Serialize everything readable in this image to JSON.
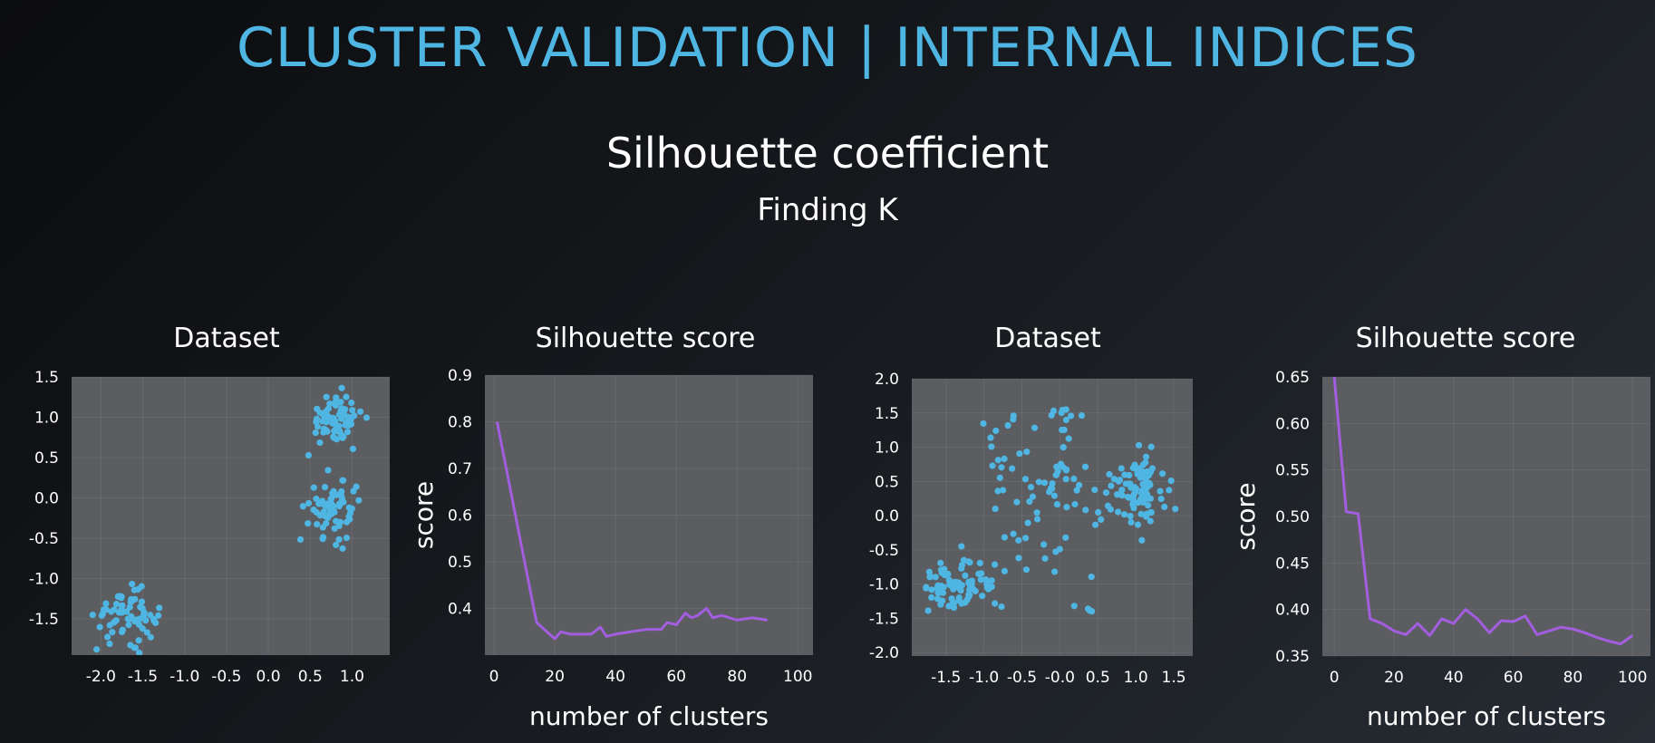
{
  "slide": {
    "title": "CLUSTER VALIDATION | INTERNAL INDICES",
    "subtitle": "Silhouette coefficient",
    "subsubtitle": "Finding K"
  },
  "colors": {
    "title": "#4fb6e3",
    "point": "#4fb6e3",
    "line": "#a35ee0",
    "plot_bg": "#5b5d61"
  },
  "chart_data": [
    {
      "type": "scatter",
      "title": "Dataset",
      "xlabel": "",
      "ylabel": "",
      "xlim": [
        -2.35,
        1.45
      ],
      "ylim": [
        -1.95,
        1.5
      ],
      "xticks": [
        -2.0,
        -1.5,
        -1.0,
        -0.5,
        0.0,
        0.5,
        1.0
      ],
      "xtick_labels": [
        "-2.0",
        "-1.5",
        "-1.0",
        "-0.5",
        "0.0",
        "0.5",
        "1.0"
      ],
      "yticks": [
        -1.5,
        -1.0,
        -0.5,
        0.0,
        0.5,
        1.0,
        1.5
      ],
      "ytick_labels": [
        "-1.5",
        "-1.0",
        "-0.5",
        "0.0",
        "0.5",
        "1.0",
        "1.5"
      ],
      "grid": true,
      "clusters": [
        {
          "center": [
            0.8,
            0.97
          ],
          "spread": [
            0.16,
            0.16
          ],
          "count": 70
        },
        {
          "center": [
            0.8,
            -0.15
          ],
          "spread": [
            0.16,
            0.18
          ],
          "count": 70
        },
        {
          "center": [
            -1.7,
            -1.45
          ],
          "spread": [
            0.18,
            0.15
          ],
          "count": 70
        }
      ]
    },
    {
      "type": "line",
      "title": "Silhouette score",
      "xlabel": "number of clusters",
      "ylabel": "score",
      "xlim": [
        -3,
        105
      ],
      "ylim": [
        0.3,
        0.9
      ],
      "xticks": [
        0,
        20,
        40,
        60,
        80,
        100
      ],
      "xtick_labels": [
        "0",
        "20",
        "40",
        "60",
        "80",
        "100"
      ],
      "yticks": [
        0.4,
        0.5,
        0.6,
        0.7,
        0.8,
        0.9
      ],
      "ytick_labels": [
        "0.4",
        "0.5",
        "0.6",
        "0.7",
        "0.8",
        "0.9"
      ],
      "grid": true,
      "x": [
        1,
        14,
        20,
        22,
        25,
        30,
        32,
        35,
        37,
        40,
        45,
        50,
        55,
        57,
        60,
        63,
        65,
        67,
        70,
        72,
        75,
        80,
        85,
        90
      ],
      "y": [
        0.8,
        0.37,
        0.335,
        0.35,
        0.345,
        0.345,
        0.345,
        0.36,
        0.34,
        0.345,
        0.35,
        0.355,
        0.355,
        0.37,
        0.365,
        0.39,
        0.38,
        0.385,
        0.4,
        0.38,
        0.385,
        0.375,
        0.38,
        0.375
      ]
    },
    {
      "type": "scatter",
      "title": "Dataset",
      "xlabel": "",
      "ylabel": "",
      "xlim": [
        -1.95,
        1.75
      ],
      "ylim": [
        -2.05,
        2.0
      ],
      "xticks": [
        -1.5,
        -1.0,
        -0.5,
        0.0,
        0.5,
        1.0,
        1.5
      ],
      "xtick_labels": [
        "-1.5",
        "-1.0",
        "-0.5",
        "-0.0",
        "0.5",
        "1.0",
        "1.5"
      ],
      "yticks": [
        -2.0,
        -1.5,
        -1.0,
        -0.5,
        0.0,
        0.5,
        1.0,
        1.5,
        2.0
      ],
      "ytick_labels": [
        "-2.0",
        "-1.5",
        "-1.0",
        "-0.5",
        "0.0",
        "0.5",
        "1.0",
        "1.5",
        "2.0"
      ],
      "grid": true,
      "clusters": [
        {
          "center": [
            1.0,
            0.35
          ],
          "spread": [
            0.18,
            0.25
          ],
          "count": 85
        },
        {
          "center": [
            -1.35,
            -1.05
          ],
          "spread": [
            0.22,
            0.2
          ],
          "count": 85
        },
        {
          "center": [
            -0.1,
            0.3
          ],
          "spread": [
            0.5,
            0.55
          ],
          "count": 60
        },
        {
          "center": [
            -0.85,
            1.0
          ],
          "spread": [
            0.15,
            0.3
          ],
          "count": 10
        },
        {
          "center": [
            -0.1,
            1.35
          ],
          "spread": [
            0.25,
            0.15
          ],
          "count": 12
        },
        {
          "center": [
            0.3,
            -1.4
          ],
          "spread": [
            0.1,
            0.15
          ],
          "count": 4
        }
      ]
    },
    {
      "type": "line",
      "title": "Silhouette score",
      "xlabel": "number of clusters",
      "ylabel": "score",
      "xlim": [
        -4,
        106
      ],
      "ylim": [
        0.35,
        0.65
      ],
      "xticks": [
        0,
        20,
        40,
        60,
        80,
        100
      ],
      "xtick_labels": [
        "0",
        "20",
        "40",
        "60",
        "80",
        "100"
      ],
      "yticks": [
        0.35,
        0.4,
        0.45,
        0.5,
        0.55,
        0.6,
        0.65
      ],
      "ytick_labels": [
        "0.35",
        "0.40",
        "0.45",
        "0.50",
        "0.55",
        "0.60",
        "0.65"
      ],
      "grid": true,
      "x": [
        0,
        4,
        8,
        12,
        16,
        20,
        24,
        28,
        32,
        36,
        40,
        44,
        48,
        52,
        56,
        60,
        64,
        68,
        72,
        76,
        80,
        84,
        88,
        92,
        96,
        100
      ],
      "y": [
        0.65,
        0.505,
        0.503,
        0.39,
        0.385,
        0.377,
        0.373,
        0.385,
        0.372,
        0.39,
        0.385,
        0.4,
        0.39,
        0.375,
        0.388,
        0.387,
        0.393,
        0.373,
        0.377,
        0.381,
        0.379,
        0.375,
        0.37,
        0.366,
        0.363,
        0.372
      ]
    }
  ]
}
